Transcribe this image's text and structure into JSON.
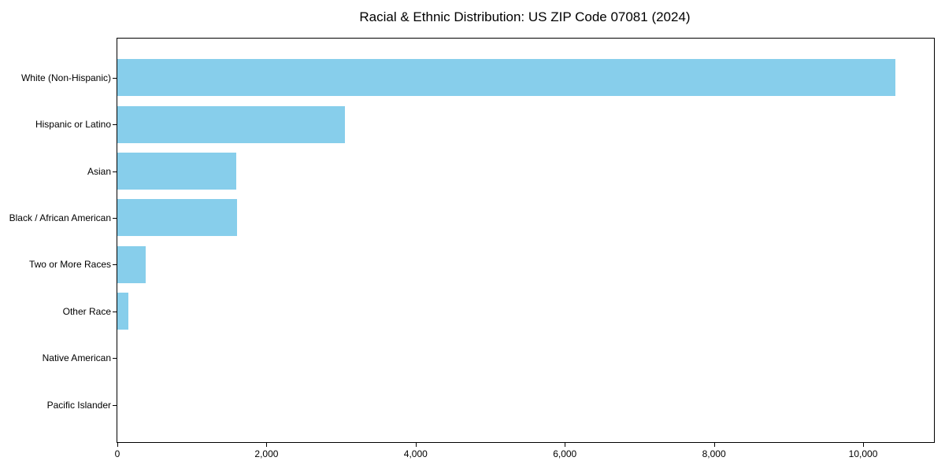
{
  "title": "Racial & Ethnic Distribution: US ZIP Code 07081 (2024)",
  "chart_data": {
    "type": "bar",
    "orientation": "horizontal",
    "title": "Racial & Ethnic Distribution: US ZIP Code 07081 (2024)",
    "categories": [
      "White (Non-Hispanic)",
      "Hispanic or Latino",
      "Asian",
      "Black / African American",
      "Two or More Races",
      "Other Race",
      "Native American",
      "Pacific Islander"
    ],
    "values": [
      10430,
      3050,
      1590,
      1600,
      380,
      150,
      0,
      0
    ],
    "xlabel": "",
    "ylabel": "",
    "xlim": [
      0,
      10950
    ],
    "xticks": [
      0,
      2000,
      4000,
      6000,
      8000,
      10000
    ],
    "xtick_labels": [
      "0",
      "2,000",
      "4,000",
      "6,000",
      "8,000",
      "10,000"
    ],
    "bar_color": "#87CEEB",
    "background_color": "#ffffff",
    "text_color": "#000000",
    "grid": false,
    "legend_position": "none"
  }
}
